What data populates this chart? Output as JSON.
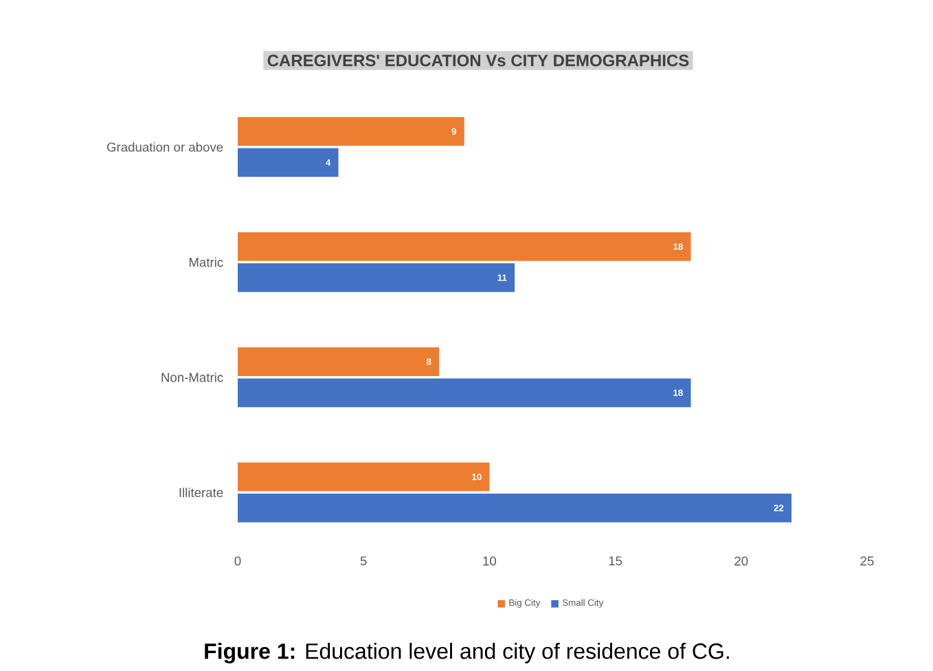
{
  "chart_data": {
    "type": "bar",
    "orientation": "horizontal",
    "title": "CAREGIVERS' EDUCATION Vs CITY DEMOGRAPHICS",
    "categories": [
      "Graduation or above",
      "Matric",
      "Non-Matric",
      "Illiterate"
    ],
    "series": [
      {
        "name": "Big City",
        "color": "#ed7d31",
        "values": [
          9,
          18,
          8,
          10
        ]
      },
      {
        "name": "Small City",
        "color": "#4472c4",
        "values": [
          4,
          11,
          18,
          22
        ]
      }
    ],
    "xlim": [
      0,
      25
    ],
    "xticks": [
      0,
      5,
      10,
      15,
      20,
      25
    ],
    "data_labels": true,
    "legend": "bottom",
    "annotations": [
      "**Figure 1:** Education level and city of residence of CG."
    ]
  }
}
